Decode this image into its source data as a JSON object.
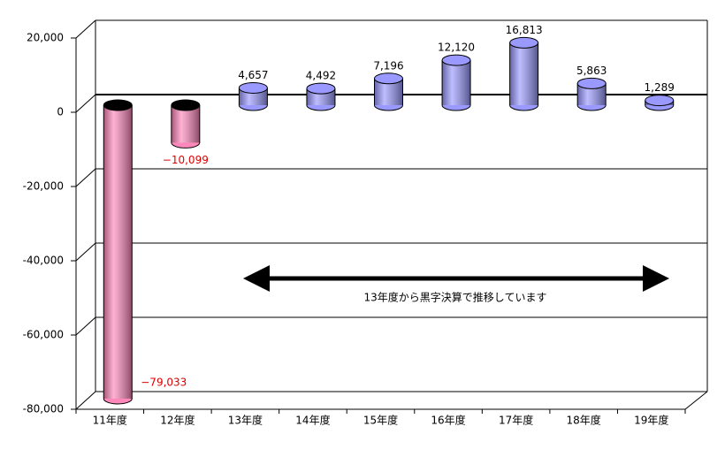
{
  "chart_data": {
    "type": "bar",
    "categories": [
      "11年度",
      "12年度",
      "13年度",
      "14年度",
      "15年度",
      "16年度",
      "17年度",
      "18年度",
      "19年度"
    ],
    "values": [
      -79033,
      -10099,
      4657,
      4492,
      7196,
      12120,
      16813,
      5863,
      1289
    ],
    "value_labels": [
      "−79,033",
      "−10,099",
      "4,657",
      "4,492",
      "7,196",
      "12,120",
      "16,813",
      "5,863",
      "1,289"
    ],
    "positive_color": "#9999ff",
    "negative_color": "#ff88bb",
    "positive_label_color": "#000000",
    "negative_label_color": "#e00000",
    "ylim": [
      -80000,
      20000
    ],
    "yticks": [
      {
        "value": -80000,
        "label": "-80,000"
      },
      {
        "value": -60000,
        "label": "-60,000"
      },
      {
        "value": -40000,
        "label": "-40,000"
      },
      {
        "value": -20000,
        "label": "-20,000"
      },
      0,
      {
        "value": 20000,
        "label": "20,000"
      }
    ],
    "grid": true,
    "annotation": "13年度から黒字決算で推移しています"
  }
}
